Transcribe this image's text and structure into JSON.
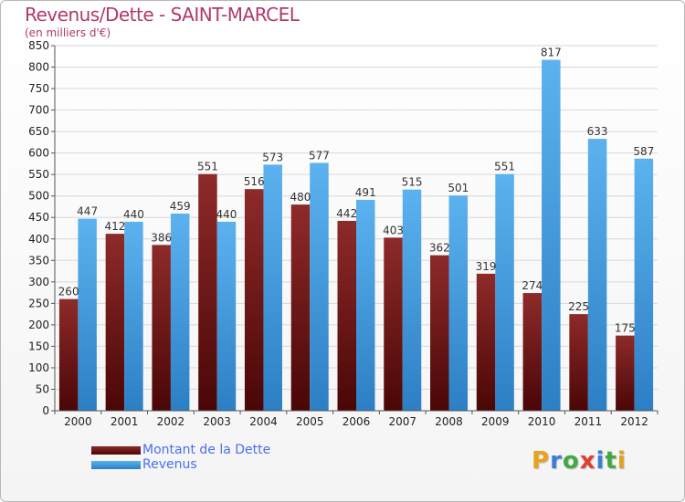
{
  "header": {
    "title": "Revenus/Dette - SAINT-MARCEL",
    "subtitle": "(en milliers d'€)"
  },
  "logo": {
    "letters": [
      "P",
      "r",
      "o",
      "x",
      "i",
      "t",
      "i"
    ],
    "colors": [
      "#e8a21c",
      "#3b7ed9",
      "#43a843",
      "#e0402e",
      "#3b7ed9",
      "#43a843",
      "#e0a21c"
    ]
  },
  "chart_data": {
    "type": "bar",
    "title": "Revenus/Dette - SAINT-MARCEL",
    "subtitle": "(en milliers d'€)",
    "categories": [
      "2000",
      "2001",
      "2002",
      "2003",
      "2004",
      "2005",
      "2006",
      "2007",
      "2008",
      "2009",
      "2010",
      "2011",
      "2012"
    ],
    "series": [
      {
        "name": "Montant de la Dette",
        "color": "#7a1414",
        "values": [
          260,
          412,
          386,
          551,
          516,
          480,
          442,
          403,
          362,
          319,
          274,
          225,
          175
        ]
      },
      {
        "name": "Revenus",
        "color": "#4aa3e6",
        "values": [
          447,
          440,
          459,
          440,
          573,
          577,
          491,
          515,
          501,
          551,
          817,
          633,
          587
        ]
      }
    ],
    "ylim": [
      0,
      850
    ],
    "ytick_step": 50,
    "grid": true,
    "legend": "bottom-left"
  }
}
